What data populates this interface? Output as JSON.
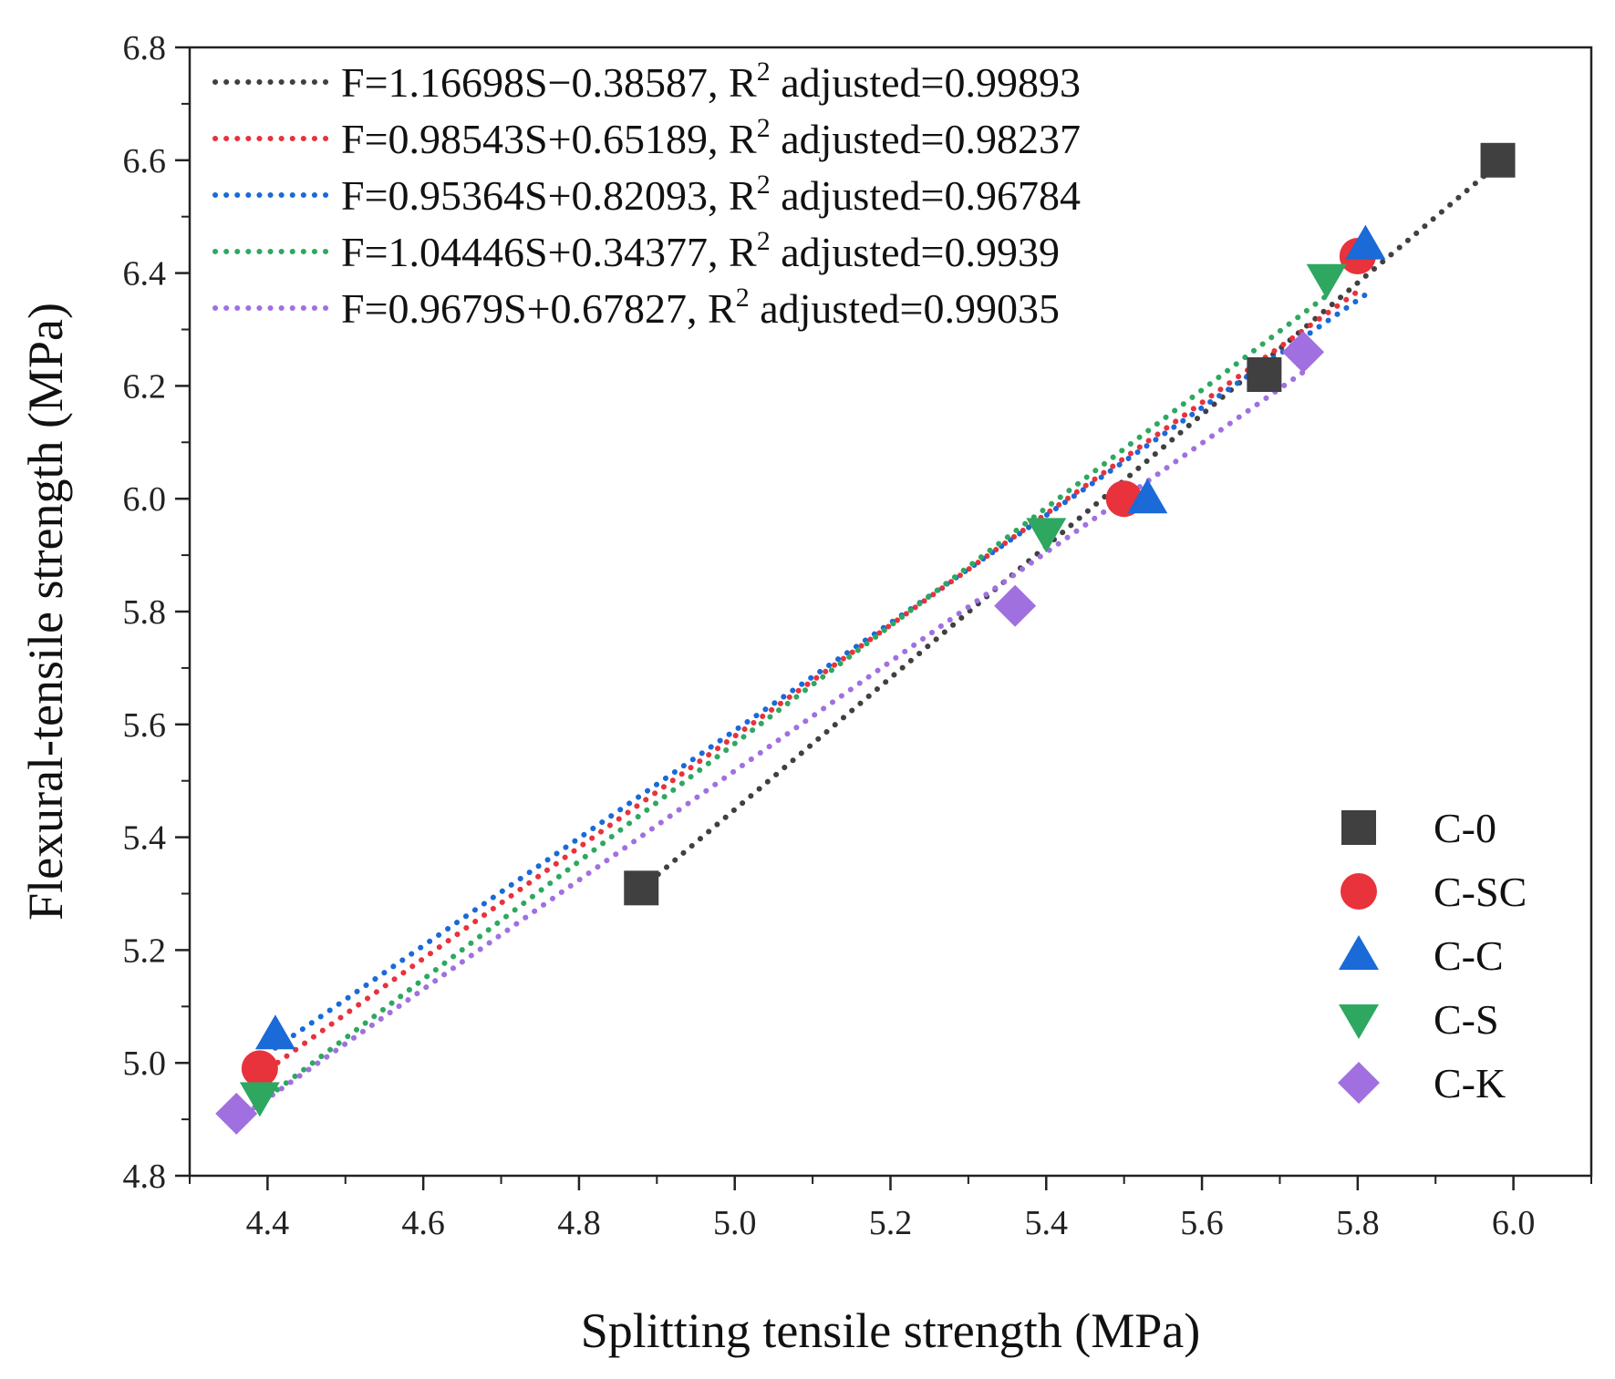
{
  "chart_data": {
    "type": "scatter",
    "title": "",
    "xlabel": "Splitting tensile strength (MPa)",
    "ylabel": "Flexural-tensile strength (MPa)",
    "xlim": [
      4.3,
      6.1
    ],
    "ylim": [
      4.8,
      6.8
    ],
    "xticks": [
      4.4,
      4.6,
      4.8,
      5.0,
      5.2,
      5.4,
      5.6,
      5.8,
      6.0
    ],
    "yticks": [
      4.8,
      5.0,
      5.2,
      5.4,
      5.6,
      5.8,
      6.0,
      6.2,
      6.4,
      6.6,
      6.8
    ],
    "xtick_labels": [
      "4.4",
      "4.6",
      "4.8",
      "5.0",
      "5.2",
      "5.4",
      "5.6",
      "5.8",
      "6.0"
    ],
    "ytick_labels": [
      "4.8",
      "5.0",
      "5.2",
      "5.4",
      "5.6",
      "5.8",
      "6.0",
      "6.2",
      "6.4",
      "6.6",
      "6.8"
    ],
    "grid": false,
    "legend_position": "bottom-right",
    "series": [
      {
        "name": "C-0",
        "marker": "square",
        "color": "#404040",
        "x": [
          4.88,
          5.68,
          5.98
        ],
        "y": [
          5.31,
          6.22,
          6.6
        ],
        "fit": {
          "label_pre": "F=1.16698S−0.38587, R",
          "label_sup": "2",
          "label_post": " adjusted=0.99893",
          "slope": 1.16698,
          "intercept": -0.38587,
          "x_range": [
            4.88,
            5.98
          ],
          "color": "#404040"
        }
      },
      {
        "name": "C-SC",
        "marker": "circle",
        "color": "#e8323c",
        "x": [
          4.39,
          5.5,
          5.8
        ],
        "y": [
          4.99,
          6.0,
          6.43
        ],
        "fit": {
          "label_pre": "F=0.98543S+0.65189, R",
          "label_sup": "2",
          "label_post": " adjusted=0.98237",
          "slope": 0.98543,
          "intercept": 0.65189,
          "x_range": [
            4.39,
            5.8
          ],
          "color": "#e8323c"
        }
      },
      {
        "name": "C-C",
        "marker": "triangle-up",
        "color": "#1a6ad8",
        "x": [
          4.41,
          5.53,
          5.81
        ],
        "y": [
          5.05,
          6.0,
          6.45
        ],
        "fit": {
          "label_pre": "F=0.95364S+0.82093, R",
          "label_sup": "2",
          "label_post": " adjusted=0.96784",
          "slope": 0.95364,
          "intercept": 0.82093,
          "x_range": [
            4.41,
            5.81
          ],
          "color": "#1a6ad8"
        }
      },
      {
        "name": "C-S",
        "marker": "triangle-down",
        "color": "#2ea860",
        "x": [
          4.39,
          5.4,
          5.76
        ],
        "y": [
          4.94,
          5.94,
          6.39
        ],
        "fit": {
          "label_pre": "F=1.04446S+0.34377, R",
          "label_sup": "2",
          "label_post": " adjusted=0.9939",
          "slope": 1.04446,
          "intercept": 0.34377,
          "x_range": [
            4.39,
            5.76
          ],
          "color": "#2ea860"
        }
      },
      {
        "name": "C-K",
        "marker": "diamond",
        "color": "#a070e0",
        "x": [
          4.36,
          5.36,
          5.73
        ],
        "y": [
          4.91,
          5.81,
          6.26
        ],
        "fit": {
          "label_pre": "F=0.9679S+0.67827, R",
          "label_sup": "2",
          "label_post": " adjusted=0.99035",
          "slope": 0.9679,
          "intercept": 0.67827,
          "x_range": [
            4.36,
            5.73
          ],
          "color": "#a070e0"
        }
      }
    ]
  }
}
